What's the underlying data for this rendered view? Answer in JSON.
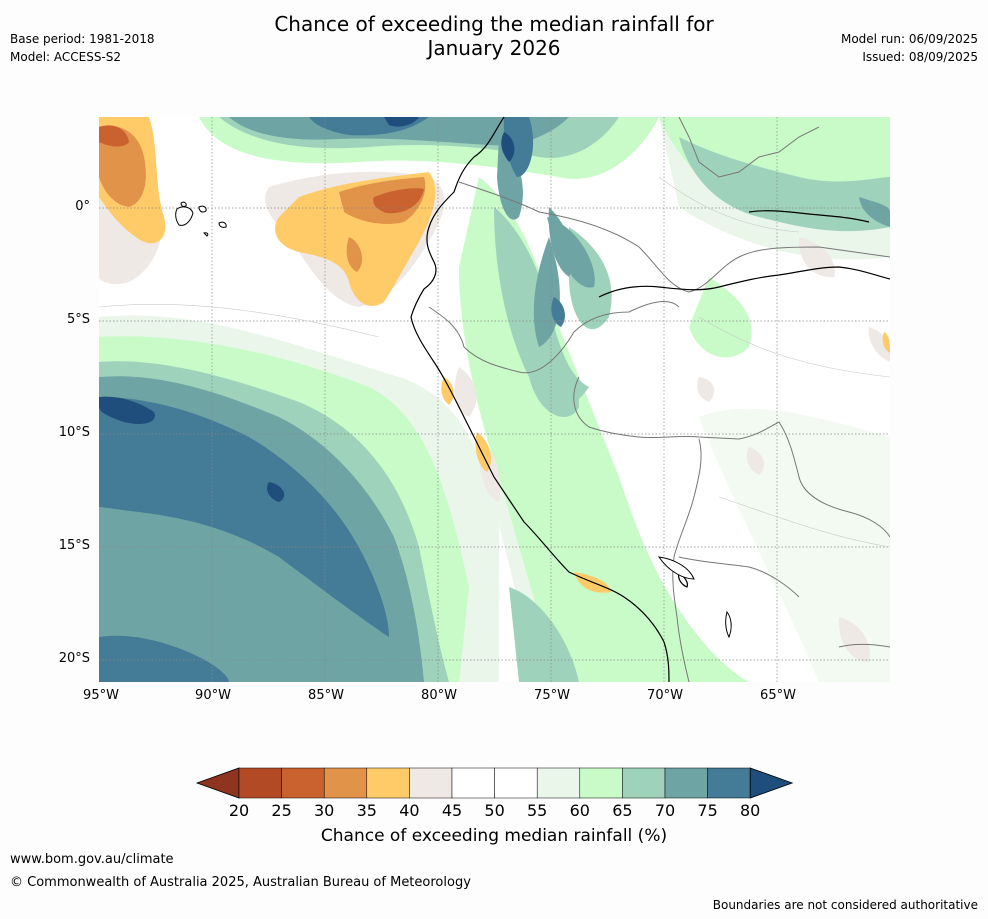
{
  "title_line1": "Chance of exceeding the median rainfall for",
  "title_line2": "January 2026",
  "base_period": "Base period: 1981-2018",
  "model": "Model: ACCESS-S2",
  "model_run": "Model run: 06/09/2025",
  "issued": "Issued: 08/09/2025",
  "lat_labels": [
    "0°",
    "5°S",
    "10°S",
    "15°S",
    "20°S"
  ],
  "lon_labels": [
    "95°W",
    "90°W",
    "85°W",
    "80°W",
    "75°W",
    "70°W",
    "65°W"
  ],
  "colorbar": {
    "ticks": [
      "20",
      "25",
      "30",
      "35",
      "40",
      "45",
      "50",
      "55",
      "60",
      "65",
      "70",
      "75",
      "80"
    ],
    "colors": [
      "#8e3420",
      "#b24a26",
      "#c9622f",
      "#e1934a",
      "#fecb68",
      "#efe9e6",
      "#ffffff",
      "#ffffff",
      "#e9f6e9",
      "#c8fbc8",
      "#9fd2bb",
      "#6ea5a4",
      "#447b97",
      "#1f4d7c"
    ],
    "title": "Chance of exceeding median rainfall (%)"
  },
  "footer": {
    "url": "www.bom.gov.au/climate",
    "copyright": "© Commonwealth of Australia 2025, Australian Bureau of Meteorology",
    "note": "Boundaries are not considered authoritative"
  }
}
